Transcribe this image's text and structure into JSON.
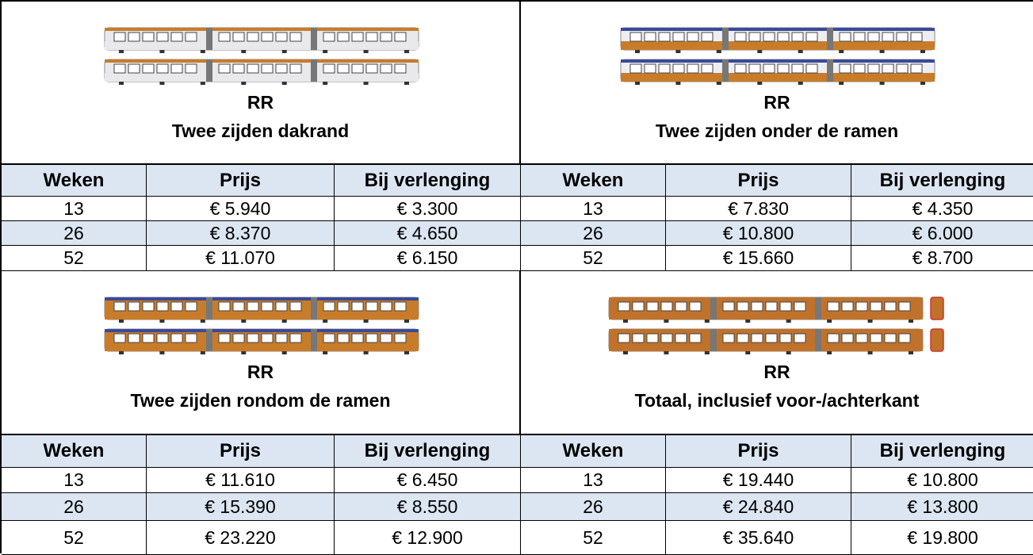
{
  "panels": [
    {
      "label": "RR",
      "title": "Twee zijden dakrand",
      "table": {
        "header": [
          "Weken",
          "Prijs",
          "Bij verlenging"
        ],
        "rows": [
          [
            "13",
            "€ 5.940",
            "€ 3.300"
          ],
          [
            "26",
            "€ 8.370",
            "€ 4.650"
          ],
          [
            "52",
            "€ 11.070",
            "€ 6.150"
          ]
        ]
      }
    },
    {
      "label": "RR",
      "title": "Twee zijden onder de ramen",
      "table": {
        "header": [
          "Weken",
          "Prijs",
          "Bij verlenging"
        ],
        "rows": [
          [
            "13",
            "€ 7.830",
            "€ 4.350"
          ],
          [
            "26",
            "€ 10.800",
            "€ 6.000"
          ],
          [
            "52",
            "€ 15.660",
            "€ 8.700"
          ]
        ]
      }
    },
    {
      "label": "RR",
      "title": "Twee zijden rondom de ramen",
      "table": {
        "header": [
          "Weken",
          "Prijs",
          "Bij verlenging"
        ],
        "rows": [
          [
            "13",
            "€ 11.610",
            "€ 6.450"
          ],
          [
            "26",
            "€ 15.390",
            "€ 8.550"
          ],
          [
            "52",
            "€ 23.220",
            "€ 12.900"
          ]
        ]
      }
    },
    {
      "label": "RR",
      "title": "Totaal, inclusief voor-/achterkant",
      "table": {
        "header": [
          "Weken",
          "Prijs",
          "Bij verlenging"
        ],
        "rows": [
          [
            "13",
            "€ 19.440",
            "€ 10.800"
          ],
          [
            "26",
            "€ 24.840",
            "€ 13.800"
          ],
          [
            "52",
            "€ 35.640",
            "€ 19.800"
          ]
        ]
      }
    }
  ]
}
